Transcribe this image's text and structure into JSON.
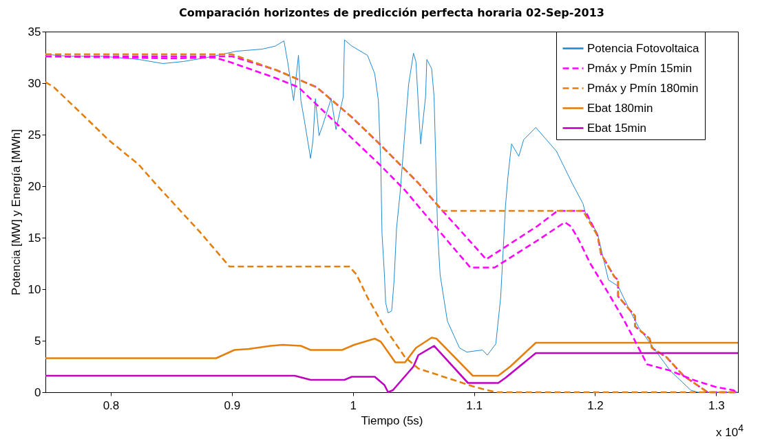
{
  "chart_data": {
    "type": "line",
    "title": "Comparación horizontes de predicción perfecta horaria 02-Sep-2013",
    "xlabel": "Tiempo (5s)",
    "ylabel": "Potencia [MW] y Energía [MWh]",
    "annotations": [
      "x 10$^{4}$"
    ],
    "xlim": [
      0.746,
      1.318
    ],
    "xticks": [
      0.8,
      0.9,
      1,
      1.1,
      1.2,
      1.3
    ],
    "ylim": [
      0,
      35
    ],
    "yticks": [
      0,
      5,
      10,
      15,
      20,
      25,
      30,
      35
    ],
    "legend": "top right",
    "marker": "none",
    "series": [
      {
        "name": "Potencia Fotovoltaica",
        "color": "#1f8ad0",
        "line_style": "solid",
        "x": [
          0.746,
          0.766,
          0.794,
          0.823,
          0.843,
          0.86,
          0.88,
          0.904,
          0.925,
          0.936,
          0.943,
          0.946,
          0.951,
          0.955,
          0.957,
          0.96,
          0.965,
          0.967,
          0.969,
          0.972,
          0.975,
          0.982,
          0.986,
          0.992,
          0.993,
          0.999,
          1.012,
          1.018,
          1.021,
          1.023,
          1.024,
          1.026,
          1.027,
          1.029,
          1.032,
          1.034,
          1.036,
          1.039,
          1.046,
          1.05,
          1.052,
          1.055,
          1.056,
          1.057,
          1.06,
          1.061,
          1.065,
          1.067,
          1.069,
          1.07,
          1.072,
          1.078,
          1.088,
          1.094,
          1.107,
          1.111,
          1.118,
          1.122,
          1.124,
          1.126,
          1.128,
          1.131,
          1.137,
          1.141,
          1.151,
          1.168,
          1.181,
          1.19,
          1.192,
          1.202,
          1.207,
          1.211,
          1.219,
          1.228,
          1.236,
          1.247,
          1.262,
          1.279,
          1.285,
          1.318
        ],
        "values": [
          32.8,
          32.6,
          32.6,
          32.3,
          31.9,
          32.1,
          32.5,
          33.1,
          33.3,
          33.6,
          34.1,
          32.1,
          28.3,
          32.7,
          28.3,
          26.3,
          22.7,
          24.5,
          28.5,
          24.9,
          25.9,
          28.5,
          25.5,
          28.7,
          34.2,
          33.6,
          32.7,
          30.9,
          28.3,
          22.1,
          15.4,
          11.4,
          8.7,
          7.7,
          7.9,
          10.9,
          15.9,
          19.4,
          29.9,
          32.9,
          32.1,
          25.9,
          24.1,
          25.4,
          28.7,
          32.3,
          31.4,
          28.7,
          19.9,
          15.4,
          11.4,
          6.9,
          4.3,
          3.9,
          4.1,
          3.6,
          4.7,
          9.2,
          13.6,
          18.1,
          20.9,
          24.1,
          22.9,
          24.5,
          25.7,
          23.4,
          20.3,
          18.3,
          17.4,
          15.4,
          12.9,
          10.9,
          10.3,
          8.1,
          6.3,
          4.5,
          2.1,
          0.2,
          0,
          0
        ]
      },
      {
        "name": "Pmáx y Pmín 15min",
        "color": "#ff00ff",
        "line_style": "dashed",
        "x": [
          0.746,
          0.9,
          0.936,
          0.97,
          0.999,
          1.022,
          1.054,
          1.074,
          1.091,
          1.11,
          1.152,
          1.169,
          1.192,
          1.202,
          1.205,
          1.216,
          1.219,
          1.219,
          1.233,
          1.233,
          1.245,
          1.247,
          1.259,
          1.273,
          1.293,
          1.318
        ],
        "values": [
          32.6,
          32.6,
          31.3,
          29.6,
          26.7,
          24.1,
          20.3,
          17.6,
          15.4,
          12.9,
          16.1,
          17.6,
          17.6,
          15.2,
          13.4,
          11.2,
          10.9,
          9.3,
          7.4,
          6.4,
          5.2,
          4.3,
          3.4,
          1.6,
          0,
          0
        ]
      },
      {
        "name": "Pmáx y Pmín 180min",
        "color": "#e37f0c",
        "line_style": "dashed",
        "x": [
          0.746,
          0.9,
          0.936,
          0.97,
          0.999,
          1.022,
          1.054,
          1.074,
          1.19,
          1.202,
          1.205,
          1.216,
          1.219,
          1.219,
          1.233,
          1.233,
          1.245,
          1.247,
          1.259,
          1.273,
          1.293,
          1.318
        ],
        "values": [
          32.8,
          32.8,
          31.3,
          29.6,
          26.7,
          24.1,
          20.3,
          17.6,
          17.6,
          15.2,
          13.4,
          11.2,
          10.9,
          9.3,
          7.4,
          6.4,
          5.2,
          4.3,
          3.4,
          1.6,
          0,
          0
        ]
      },
      {
        "name": "Ebat 180min",
        "color": "#e37f0c",
        "line_style": "solid",
        "x": [
          0.746,
          0.887,
          0.902,
          0.914,
          0.932,
          0.942,
          0.957,
          0.965,
          0.991,
          1.001,
          1.018,
          1.023,
          1.035,
          1.043,
          1.052,
          1.065,
          1.069,
          1.099,
          1.12,
          1.13,
          1.151,
          1.318
        ],
        "values": [
          3.3,
          3.3,
          4.1,
          4.2,
          4.5,
          4.6,
          4.5,
          4.1,
          4.1,
          4.6,
          5.2,
          4.9,
          2.9,
          2.9,
          4.3,
          5.3,
          5.2,
          1.6,
          1.6,
          2.5,
          4.8,
          4.8
        ]
      },
      {
        "name": "Ebat 15min",
        "color": "#c000c0",
        "line_style": "solid",
        "x": [
          0.746,
          0.952,
          0.965,
          0.993,
          0.999,
          1.018,
          1.026,
          1.029,
          1.033,
          1.05,
          1.054,
          1.067,
          1.095,
          1.12,
          1.126,
          1.151,
          1.318
        ],
        "values": [
          1.6,
          1.6,
          1.2,
          1.2,
          1.5,
          1.5,
          0.7,
          0,
          0.2,
          2.5,
          3.6,
          4.5,
          0.9,
          0.9,
          1.4,
          3.8,
          3.8
        ]
      },
      {
        "color": "#ff00ff",
        "line_style": "dashed",
        "x": [
          0.746,
          0.851,
          0.885,
          0.897,
          0.936,
          0.955,
          0.988,
          1.022,
          1.043,
          1.073,
          1.097,
          1.117,
          1.152,
          1.175,
          1.18,
          1.186,
          1.196,
          1.211,
          1.222,
          1.232,
          1.243,
          1.262,
          1.281,
          1.3,
          1.314,
          1.318
        ],
        "values": [
          32.6,
          32.4,
          32.5,
          32.1,
          30.5,
          29.6,
          25.9,
          22.1,
          19.6,
          15.4,
          12.1,
          12.1,
          14.7,
          16.5,
          16.1,
          14.9,
          12.5,
          9.6,
          7.4,
          5.2,
          2.7,
          2.1,
          1.2,
          0.5,
          0.2,
          0
        ]
      },
      {
        "color": "#e37f0c",
        "line_style": "dashed",
        "x": [
          0.746,
          0.753,
          0.777,
          0.798,
          0.823,
          0.838,
          0.874,
          0.898,
          0.997,
          1.003,
          1.012,
          1.026,
          1.043,
          1.054,
          1.101,
          1.118,
          1.318
        ],
        "values": [
          30.1,
          29.6,
          26.9,
          24.5,
          22.1,
          20.1,
          15.5,
          12.2,
          12.2,
          11.4,
          9.2,
          6.3,
          3.4,
          2.3,
          0.5,
          0,
          0
        ]
      }
    ]
  }
}
